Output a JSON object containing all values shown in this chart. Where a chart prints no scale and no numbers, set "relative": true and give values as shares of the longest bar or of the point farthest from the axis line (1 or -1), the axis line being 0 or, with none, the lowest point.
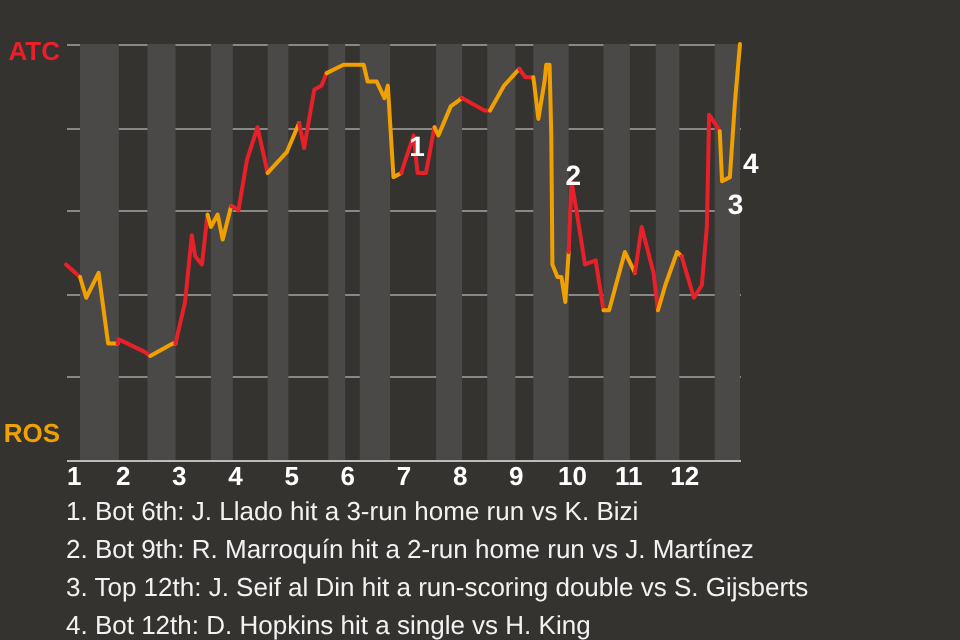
{
  "chart_data": {
    "type": "line",
    "relative": true,
    "xlim": [
      1,
      13
    ],
    "xticks": [
      1,
      2,
      3,
      4,
      5,
      6,
      7,
      8,
      9,
      10,
      11,
      12
    ],
    "grid": "y",
    "marker": "none",
    "line_style": "solid",
    "series": [
      {
        "color": "#e8202a",
        "x": [
          1.0,
          1.25
        ],
        "values": [
          0.47,
          0.44
        ]
      },
      {
        "color": "#f0a000",
        "x": [
          1.25,
          1.36,
          1.58,
          1.75,
          1.92
        ],
        "values": [
          0.44,
          0.39,
          0.45,
          0.28,
          0.28
        ]
      },
      {
        "color": "#e8202a",
        "x": [
          1.92,
          1.94,
          2.4,
          2.5
        ],
        "values": [
          0.28,
          0.29,
          0.26,
          0.25
        ]
      },
      {
        "color": "#f0a000",
        "x": [
          2.5,
          2.9,
          2.95
        ],
        "values": [
          0.25,
          0.28,
          0.28
        ]
      },
      {
        "color": "#e8202a",
        "x": [
          2.95,
          3.12,
          3.24,
          3.3,
          3.42,
          3.52
        ],
        "values": [
          0.28,
          0.38,
          0.54,
          0.49,
          0.47,
          0.59
        ]
      },
      {
        "color": "#f0a000",
        "x": [
          3.52,
          3.58,
          3.7,
          3.79,
          3.94
        ],
        "values": [
          0.59,
          0.56,
          0.59,
          0.53,
          0.61
        ]
      },
      {
        "color": "#e8202a",
        "x": [
          3.94,
          3.97,
          4.07,
          4.22,
          4.41,
          4.59
        ],
        "values": [
          0.61,
          0.61,
          0.6,
          0.72,
          0.8,
          0.69
        ]
      },
      {
        "color": "#f0a000",
        "x": [
          4.59,
          4.93,
          5.15
        ],
        "values": [
          0.69,
          0.74,
          0.81
        ]
      },
      {
        "color": "#e8202a",
        "x": [
          5.15,
          5.24,
          5.42,
          5.55,
          5.64
        ],
        "values": [
          0.81,
          0.75,
          0.89,
          0.9,
          0.93
        ]
      },
      {
        "color": "#f0a000",
        "x": [
          5.64,
          5.94,
          6.2,
          6.3,
          6.37,
          6.53,
          6.67,
          6.73,
          6.83,
          6.97
        ],
        "values": [
          0.93,
          0.95,
          0.95,
          0.95,
          0.91,
          0.91,
          0.87,
          0.9,
          0.68,
          0.69
        ]
      },
      {
        "color": "#e8202a",
        "x": [
          6.97,
          7.04,
          7.19,
          7.26,
          7.41,
          7.56
        ],
        "values": [
          0.69,
          0.72,
          0.78,
          0.69,
          0.69,
          0.8
        ]
      },
      {
        "color": "#f0a000",
        "x": [
          7.56,
          7.63,
          7.85,
          8.05
        ],
        "values": [
          0.8,
          0.78,
          0.85,
          0.87
        ]
      },
      {
        "color": "#e8202a",
        "x": [
          8.05,
          8.45,
          8.55
        ],
        "values": [
          0.87,
          0.84,
          0.84
        ]
      },
      {
        "color": "#f0a000",
        "x": [
          8.55,
          8.8,
          9.07
        ],
        "values": [
          0.84,
          0.9,
          0.94
        ]
      },
      {
        "color": "#e8202a",
        "x": [
          9.07,
          9.18,
          9.32
        ],
        "values": [
          0.94,
          0.92,
          0.92
        ]
      },
      {
        "color": "#f0a000",
        "x": [
          9.32,
          9.34,
          9.41,
          9.52,
          9.55,
          9.61,
          9.64,
          9.65,
          9.66,
          9.75,
          9.82,
          9.89,
          9.95
        ],
        "values": [
          0.92,
          0.9,
          0.82,
          0.91,
          0.95,
          0.95,
          0.78,
          0.63,
          0.47,
          0.44,
          0.44,
          0.38,
          0.5
        ]
      },
      {
        "color": "#e8202a",
        "x": [
          9.95,
          10.0,
          10.1,
          10.24,
          10.43,
          10.57
        ],
        "values": [
          0.5,
          0.67,
          0.59,
          0.47,
          0.48,
          0.36
        ]
      },
      {
        "color": "#f0a000",
        "x": [
          10.57,
          10.67,
          10.95,
          11.13
        ],
        "values": [
          0.36,
          0.36,
          0.5,
          0.45
        ]
      },
      {
        "color": "#e8202a",
        "x": [
          11.13,
          11.25,
          11.46,
          11.54
        ],
        "values": [
          0.45,
          0.56,
          0.45,
          0.36
        ]
      },
      {
        "color": "#f0a000",
        "x": [
          11.54,
          11.67,
          11.88,
          11.96
        ],
        "values": [
          0.36,
          0.42,
          0.5,
          0.49
        ]
      },
      {
        "color": "#e8202a",
        "x": [
          11.96,
          12.18,
          12.32,
          12.41,
          12.43,
          12.45,
          12.55,
          12.64
        ],
        "values": [
          0.49,
          0.39,
          0.42,
          0.56,
          0.69,
          0.83,
          0.81,
          0.79
        ]
      },
      {
        "color": "#f0a000",
        "x": [
          12.64,
          12.68,
          12.82,
          12.91,
          13.0
        ],
        "values": [
          0.79,
          0.67,
          0.68,
          0.86,
          1.0
        ]
      }
    ],
    "bands": [
      {
        "axis": "x",
        "from": 1.25,
        "to": 1.94,
        "color": "#4b4947"
      },
      {
        "axis": "x",
        "from": 2.45,
        "to": 2.95,
        "color": "#4b4947"
      },
      {
        "axis": "x",
        "from": 3.58,
        "to": 3.97,
        "color": "#4b4947"
      },
      {
        "axis": "x",
        "from": 4.59,
        "to": 4.96,
        "color": "#4b4947"
      },
      {
        "axis": "x",
        "from": 5.67,
        "to": 5.97,
        "color": "#4b4947"
      },
      {
        "axis": "x",
        "from": 6.23,
        "to": 6.77,
        "color": "#4b4947"
      },
      {
        "axis": "x",
        "from": 7.59,
        "to": 8.05,
        "color": "#4b4947"
      },
      {
        "axis": "x",
        "from": 8.5,
        "to": 9.0,
        "color": "#4b4947"
      },
      {
        "axis": "x",
        "from": 9.32,
        "to": 9.95,
        "color": "#4b4947"
      },
      {
        "axis": "x",
        "from": 10.57,
        "to": 11.04,
        "color": "#4b4947"
      },
      {
        "axis": "x",
        "from": 11.5,
        "to": 11.92,
        "color": "#4b4947"
      },
      {
        "axis": "x",
        "from": 12.55,
        "to": 13.0,
        "color": "#4b4947"
      }
    ],
    "annotations": [
      "ATC",
      "ROS",
      {
        "text": "1",
        "x": 6.97,
        "y": 0.75
      },
      {
        "text": "2",
        "x": 9.75,
        "y": 0.68
      },
      {
        "text": "3",
        "x": 12.64,
        "y": 0.61
      },
      {
        "text": "4",
        "x": 12.91,
        "y": 0.71
      },
      "1. Bot 6th: J. Llado hit a 3-run home run vs K. Bizi",
      "2. Bot 9th: R. Marroquín hit a 2-run home run vs J. Martínez",
      "3. Top 12th: J. Seif al Din hit a run-scoring double vs S. Gijsberts",
      "4. Bot 12th: D. Hopkins hit a single vs H. King"
    ]
  }
}
